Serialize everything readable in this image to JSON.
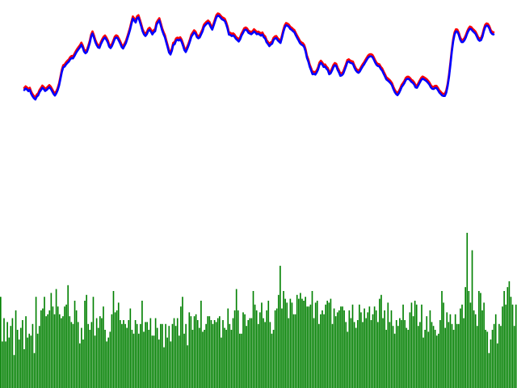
{
  "colors": {
    "background": "#ffffff",
    "line_high": "#ff0000",
    "line_low": "#0000ff",
    "volume": "#008000"
  },
  "chart_data": [
    {
      "type": "line",
      "title": "",
      "xlabel": "",
      "ylabel": "",
      "grid": false,
      "legend": "none",
      "x_range": [
        0,
        288
      ],
      "ylim": [
        0,
        100
      ],
      "series": [
        {
          "color": "#ff0000",
          "values": [
            55.1,
            56.0,
            55.4,
            54.5,
            55.2,
            53.0,
            51.6,
            50.5,
            49.8,
            51.4,
            52.1,
            54.0,
            55.1,
            56.4,
            55.7,
            54.6,
            55.1,
            55.9,
            56.7,
            55.9,
            54.5,
            53.0,
            52.0,
            53.2,
            55.0,
            57.6,
            61.4,
            65.3,
            67.9,
            68.3,
            69.5,
            70.4,
            71.1,
            72.4,
            73.1,
            72.9,
            74.2,
            75.7,
            77.0,
            78.1,
            79.1,
            80.6,
            79.0,
            76.7,
            75.8,
            76.5,
            78.8,
            81.4,
            85.0,
            86.9,
            84.8,
            82.2,
            80.4,
            79.1,
            78.8,
            80.9,
            82.5,
            83.9,
            84.6,
            83.4,
            81.9,
            79.5,
            78.7,
            79.9,
            81.8,
            83.9,
            84.7,
            84.3,
            82.8,
            81.2,
            79.3,
            78.5,
            80.0,
            81.5,
            83.9,
            86.4,
            89.1,
            92.4,
            95.3,
            94.2,
            93.1,
            95.4,
            96.0,
            93.6,
            91.0,
            88.2,
            86.4,
            85.5,
            86.5,
            88.3,
            89.0,
            87.9,
            86.4,
            87.6,
            88.2,
            91.9,
            93.2,
            94.3,
            91.6,
            88.8,
            86.6,
            84.8,
            81.9,
            79.1,
            76.2,
            75.1,
            77.2,
            80.5,
            80.9,
            82.9,
            83.4,
            83.0,
            83.6,
            82.3,
            80.1,
            77.6,
            76.5,
            78.2,
            80.2,
            82.5,
            85.1,
            86.3,
            87.5,
            86.8,
            84.9,
            84.2,
            84.7,
            86.4,
            88.1,
            90.6,
            91.6,
            92.4,
            93.0,
            92.2,
            90.4,
            89.1,
            91.4,
            93.8,
            96.1,
            97.0,
            96.7,
            95.8,
            94.9,
            94.5,
            94.0,
            92.1,
            89.6,
            86.3,
            86.1,
            85.5,
            85.8,
            85.1,
            83.9,
            83.2,
            82.4,
            83.6,
            85.7,
            87.1,
            88.7,
            89.1,
            88.6,
            87.3,
            86.9,
            86.5,
            87.1,
            88.1,
            87.4,
            86.5,
            86.8,
            86.3,
            85.7,
            86.3,
            84.8,
            84.1,
            82.0,
            81.0,
            79.8,
            80.7,
            81.2,
            83.3,
            84.1,
            84.3,
            83.1,
            82.3,
            81.6,
            84.4,
            87.6,
            90.2,
            91.6,
            91.3,
            90.7,
            89.5,
            89.0,
            88.2,
            87.6,
            85.9,
            84.4,
            83.0,
            81.5,
            80.7,
            80.3,
            79.3,
            76.9,
            73.2,
            71.1,
            68.2,
            66.2,
            64.0,
            64.2,
            63.8,
            65.0,
            66.7,
            69.4,
            70.4,
            69.5,
            68.1,
            68.3,
            67.1,
            66.3,
            64.0,
            64.5,
            66.1,
            68.0,
            69.1,
            68.7,
            66.5,
            65.0,
            63.1,
            63.4,
            64.2,
            66.3,
            68.4,
            70.8,
            71.2,
            70.5,
            70.2,
            69.9,
            67.9,
            66.3,
            65.3,
            64.8,
            65.6,
            67.1,
            68.4,
            69.5,
            70.9,
            72.2,
            73.4,
            74.0,
            74.1,
            73.7,
            72.3,
            70.6,
            69.2,
            68.6,
            68.4,
            67.0,
            66.1,
            64.4,
            62.8,
            61.1,
            60.5,
            59.8,
            59.0,
            57.9,
            55.8,
            54.1,
            52.9,
            52.2,
            53.3,
            54.9,
            56.8,
            57.9,
            59.1,
            60.8,
            61.4,
            61.4,
            60.7,
            59.7,
            59.2,
            58.2,
            56.6,
            56.4,
            57.8,
            59.3,
            60.7,
            61.5,
            61.1,
            60.6,
            60.0,
            59.1,
            58.1,
            56.6,
            55.8,
            55.7,
            56.3,
            56.3,
            55.2,
            53.8,
            53.0,
            52.1,
            51.8,
            51.8,
            53.6,
            57.3,
            62.5,
            69.3,
            76.6,
            82.5,
            86.4,
            88.1,
            87.9,
            86.2,
            83.6,
            82.1,
            82.1,
            83.0,
            84.6,
            86.8,
            88.5,
            89.6,
            89.3,
            88.3,
            87.6,
            86.8,
            85.2,
            83.5,
            82.8,
            83.2,
            85.1,
            88.2,
            90.6,
            91.4,
            91.1,
            89.7,
            87.6,
            86.6,
            86.4
          ]
        },
        {
          "color": "#0000ff",
          "values": [
            53.9,
            54.8,
            54.2,
            53.3,
            54.0,
            51.8,
            50.4,
            49.3,
            48.6,
            50.2,
            50.9,
            52.8,
            53.9,
            55.2,
            54.5,
            53.4,
            53.9,
            54.7,
            55.5,
            54.7,
            53.3,
            51.8,
            50.8,
            52.0,
            53.8,
            56.4,
            60.2,
            64.1,
            66.7,
            67.1,
            68.3,
            69.2,
            69.9,
            71.2,
            71.9,
            71.7,
            73.0,
            74.5,
            75.8,
            76.9,
            77.9,
            79.4,
            77.8,
            75.5,
            74.6,
            75.3,
            77.6,
            80.2,
            83.8,
            85.7,
            83.6,
            81.0,
            79.2,
            77.9,
            77.6,
            79.7,
            81.3,
            82.7,
            83.4,
            82.2,
            80.7,
            78.3,
            77.5,
            78.7,
            80.6,
            82.7,
            83.5,
            83.1,
            81.6,
            80.0,
            78.1,
            77.3,
            78.8,
            80.3,
            82.7,
            85.2,
            87.9,
            91.2,
            94.1,
            93.0,
            91.9,
            94.2,
            94.8,
            92.4,
            89.8,
            87.0,
            85.2,
            84.3,
            85.3,
            87.1,
            87.8,
            86.7,
            85.2,
            86.4,
            87.0,
            90.7,
            92.0,
            93.1,
            90.4,
            87.6,
            85.4,
            83.6,
            80.7,
            77.9,
            75.0,
            73.9,
            76.0,
            79.3,
            79.7,
            81.7,
            82.2,
            81.8,
            82.4,
            81.1,
            78.9,
            76.4,
            75.3,
            77.0,
            79.0,
            81.3,
            83.9,
            85.1,
            86.3,
            85.6,
            83.7,
            83.0,
            83.5,
            85.2,
            86.9,
            89.4,
            90.4,
            91.2,
            91.8,
            91.0,
            89.2,
            87.9,
            90.2,
            92.6,
            94.9,
            95.8,
            95.5,
            94.6,
            93.7,
            93.3,
            92.8,
            90.9,
            88.4,
            85.1,
            84.9,
            84.3,
            84.6,
            83.9,
            82.7,
            82.0,
            81.2,
            82.4,
            84.5,
            85.9,
            87.5,
            87.9,
            87.4,
            86.1,
            85.7,
            85.3,
            85.9,
            86.9,
            86.2,
            85.3,
            85.6,
            85.1,
            84.5,
            85.1,
            83.6,
            82.9,
            80.8,
            79.8,
            78.6,
            79.5,
            80.0,
            82.1,
            82.9,
            83.1,
            81.9,
            81.1,
            80.4,
            83.2,
            86.4,
            89.0,
            90.4,
            90.1,
            89.5,
            88.3,
            87.8,
            87.0,
            86.4,
            84.7,
            83.2,
            81.8,
            80.3,
            79.5,
            79.1,
            78.1,
            75.7,
            72.0,
            69.9,
            67.0,
            65.0,
            62.8,
            63.0,
            62.6,
            63.8,
            65.5,
            68.2,
            69.2,
            68.3,
            66.9,
            67.1,
            65.9,
            65.1,
            62.8,
            63.3,
            64.9,
            66.8,
            67.9,
            67.5,
            65.3,
            63.8,
            61.9,
            62.2,
            63.0,
            65.1,
            67.2,
            69.6,
            70.0,
            69.3,
            69.0,
            68.7,
            66.7,
            65.1,
            64.1,
            63.6,
            64.4,
            65.9,
            67.2,
            68.3,
            69.7,
            71.0,
            72.2,
            72.8,
            72.9,
            72.5,
            71.1,
            69.4,
            68.0,
            67.4,
            67.2,
            65.8,
            64.9,
            63.2,
            61.6,
            59.9,
            59.3,
            58.6,
            57.8,
            56.7,
            54.6,
            52.9,
            51.7,
            51.0,
            52.1,
            53.7,
            55.6,
            56.7,
            57.9,
            59.6,
            60.2,
            60.2,
            59.5,
            58.5,
            58.0,
            57.0,
            55.4,
            55.2,
            56.6,
            58.1,
            59.5,
            60.3,
            59.9,
            59.4,
            58.8,
            57.9,
            56.9,
            55.4,
            54.6,
            54.5,
            55.1,
            55.1,
            54.0,
            52.6,
            51.8,
            50.9,
            50.6,
            50.6,
            52.4,
            56.1,
            61.3,
            68.1,
            75.4,
            81.3,
            85.2,
            86.9,
            86.7,
            85.0,
            82.4,
            80.9,
            80.9,
            81.8,
            83.4,
            85.6,
            87.3,
            88.4,
            88.1,
            87.1,
            86.4,
            85.6,
            84.0,
            82.3,
            81.6,
            82.0,
            83.9,
            87.0,
            89.4,
            90.2,
            89.9,
            88.5,
            86.4,
            85.4,
            85.2
          ]
        }
      ]
    },
    {
      "type": "bar",
      "title": "",
      "xlabel": "",
      "ylabel": "",
      "grid": false,
      "legend": "none",
      "color": "#008000",
      "ylim": [
        0,
        100
      ],
      "values": [
        47,
        24,
        36,
        24,
        34,
        26,
        32,
        36,
        17,
        40,
        30,
        25,
        31,
        35,
        20,
        37,
        26,
        28,
        27,
        33,
        18,
        47,
        28,
        32,
        40,
        41,
        47,
        37,
        38,
        40,
        49,
        42,
        38,
        51,
        42,
        38,
        36,
        37,
        42,
        43,
        53,
        37,
        34,
        33,
        45,
        40,
        34,
        23,
        31,
        25,
        45,
        48,
        33,
        30,
        34,
        47,
        27,
        36,
        31,
        37,
        36,
        42,
        30,
        24,
        26,
        29,
        38,
        50,
        39,
        40,
        44,
        35,
        33,
        35,
        33,
        31,
        35,
        41,
        30,
        28,
        35,
        33,
        28,
        33,
        45,
        29,
        34,
        34,
        30,
        36,
        27,
        27,
        36,
        31,
        25,
        33,
        33,
        21,
        33,
        26,
        32,
        24,
        33,
        36,
        32,
        36,
        27,
        42,
        47,
        28,
        33,
        22,
        39,
        37,
        30,
        37,
        38,
        35,
        31,
        45,
        29,
        30,
        33,
        37,
        37,
        35,
        33,
        35,
        34,
        36,
        37,
        26,
        35,
        31,
        30,
        41,
        33,
        30,
        36,
        40,
        51,
        40,
        28,
        28,
        39,
        38,
        32,
        35,
        36,
        36,
        50,
        43,
        40,
        33,
        39,
        44,
        36,
        34,
        40,
        45,
        34,
        28,
        30,
        40,
        41,
        48,
        63,
        41,
        50,
        46,
        44,
        36,
        46,
        44,
        38,
        38,
        48,
        46,
        49,
        46,
        45,
        47,
        42,
        42,
        43,
        50,
        36,
        44,
        45,
        33,
        38,
        40,
        38,
        43,
        45,
        44,
        46,
        33,
        41,
        37,
        39,
        40,
        42,
        42,
        40,
        34,
        29,
        40,
        36,
        43,
        34,
        31,
        35,
        43,
        39,
        34,
        41,
        36,
        39,
        42,
        35,
        38,
        42,
        40,
        34,
        46,
        48,
        36,
        40,
        30,
        44,
        34,
        40,
        32,
        28,
        35,
        32,
        36,
        35,
        43,
        35,
        31,
        30,
        39,
        44,
        37,
        45,
        43,
        32,
        34,
        43,
        26,
        30,
        37,
        29,
        40,
        34,
        32,
        30,
        27,
        28,
        35,
        50,
        44,
        31,
        39,
        34,
        38,
        33,
        30,
        38,
        33,
        33,
        41,
        43,
        36,
        52,
        80,
        50,
        44,
        71,
        40,
        38,
        32,
        50,
        49,
        40,
        44,
        30,
        29,
        18,
        25,
        30,
        33,
        38,
        23,
        33,
        32,
        42,
        50,
        43,
        52,
        55,
        47,
        43,
        32,
        43
      ]
    }
  ]
}
